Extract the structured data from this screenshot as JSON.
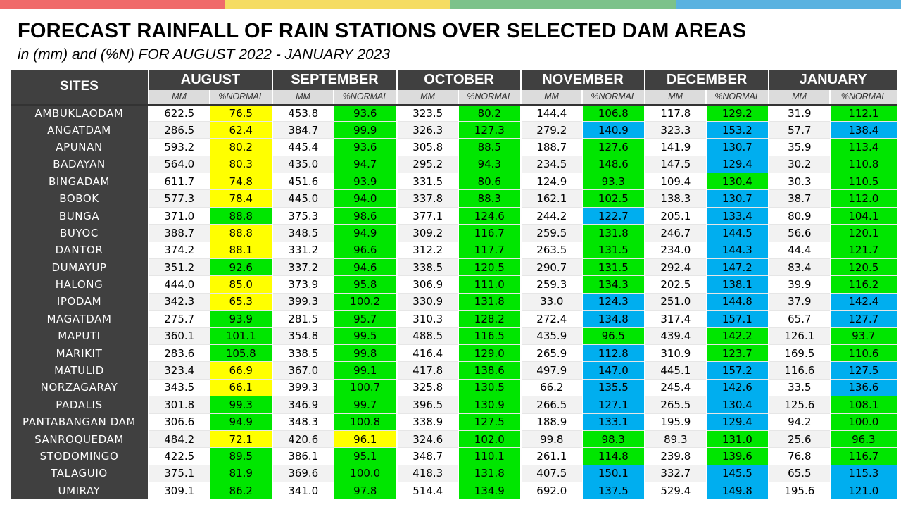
{
  "colors": {
    "topbar": [
      "#f06a6a",
      "#f5dc62",
      "#7cc28a",
      "#5ab2e0"
    ],
    "yellow": "#ffff00",
    "green": "#00e600",
    "blue": "#00aeef"
  },
  "title": "FORECAST RAINFALL OF RAIN STATIONS OVER SELECTED DAM AREAS",
  "subtitle": "in (mm) and (%N) FOR AUGUST 2022 - JANUARY 2023",
  "table": {
    "sites_header": "SITES",
    "months": [
      "AUGUST",
      "SEPTEMBER",
      "OCTOBER",
      "NOVEMBER",
      "DECEMBER",
      "JANUARY"
    ],
    "sub_headers": [
      "MM",
      "%NORMAL"
    ],
    "rows": [
      {
        "site": "AMBUKLAODAM",
        "cells": [
          [
            "622.5",
            "76.5",
            "y"
          ],
          [
            "453.8",
            "93.6",
            "g"
          ],
          [
            "323.5",
            "80.2",
            "g"
          ],
          [
            "144.4",
            "106.8",
            "g"
          ],
          [
            "117.8",
            "129.2",
            "g"
          ],
          [
            "31.9",
            "112.1",
            "g"
          ]
        ]
      },
      {
        "site": "ANGATDAM",
        "cells": [
          [
            "286.5",
            "62.4",
            "y"
          ],
          [
            "384.7",
            "99.9",
            "g"
          ],
          [
            "326.3",
            "127.3",
            "g"
          ],
          [
            "279.2",
            "140.9",
            "b"
          ],
          [
            "323.3",
            "153.2",
            "b"
          ],
          [
            "57.7",
            "138.4",
            "b"
          ]
        ]
      },
      {
        "site": "APUNAN",
        "cells": [
          [
            "593.2",
            "80.2",
            "y"
          ],
          [
            "445.4",
            "93.6",
            "g"
          ],
          [
            "305.8",
            "88.5",
            "g"
          ],
          [
            "188.7",
            "127.6",
            "g"
          ],
          [
            "141.9",
            "130.7",
            "b"
          ],
          [
            "35.9",
            "113.4",
            "g"
          ]
        ]
      },
      {
        "site": "BADAYAN",
        "cells": [
          [
            "564.0",
            "80.3",
            "y"
          ],
          [
            "435.0",
            "94.7",
            "g"
          ],
          [
            "295.2",
            "94.3",
            "g"
          ],
          [
            "234.5",
            "148.6",
            "g"
          ],
          [
            "147.5",
            "129.4",
            "b"
          ],
          [
            "30.2",
            "110.8",
            "g"
          ]
        ]
      },
      {
        "site": "BINGADAM",
        "cells": [
          [
            "611.7",
            "74.8",
            "y"
          ],
          [
            "451.6",
            "93.9",
            "g"
          ],
          [
            "331.5",
            "80.6",
            "g"
          ],
          [
            "124.9",
            "93.3",
            "g"
          ],
          [
            "109.4",
            "130.4",
            "g"
          ],
          [
            "30.3",
            "110.5",
            "g"
          ]
        ]
      },
      {
        "site": "BOBOK",
        "cells": [
          [
            "577.3",
            "78.4",
            "y"
          ],
          [
            "445.0",
            "94.0",
            "g"
          ],
          [
            "337.8",
            "88.3",
            "g"
          ],
          [
            "162.1",
            "102.5",
            "g"
          ],
          [
            "138.3",
            "130.7",
            "b"
          ],
          [
            "38.7",
            "112.0",
            "g"
          ]
        ]
      },
      {
        "site": "BUNGA",
        "cells": [
          [
            "371.0",
            "88.8",
            "g"
          ],
          [
            "375.3",
            "98.6",
            "g"
          ],
          [
            "377.1",
            "124.6",
            "g"
          ],
          [
            "244.2",
            "122.7",
            "b"
          ],
          [
            "205.1",
            "133.4",
            "b"
          ],
          [
            "80.9",
            "104.1",
            "g"
          ]
        ]
      },
      {
        "site": "BUYOC",
        "cells": [
          [
            "388.7",
            "88.8",
            "y"
          ],
          [
            "348.5",
            "94.9",
            "g"
          ],
          [
            "309.2",
            "116.7",
            "g"
          ],
          [
            "259.5",
            "131.8",
            "g"
          ],
          [
            "246.7",
            "144.5",
            "b"
          ],
          [
            "56.6",
            "120.1",
            "g"
          ]
        ]
      },
      {
        "site": "DANTOR",
        "cells": [
          [
            "374.2",
            "88.1",
            "y"
          ],
          [
            "331.2",
            "96.6",
            "g"
          ],
          [
            "312.2",
            "117.7",
            "g"
          ],
          [
            "263.5",
            "131.5",
            "g"
          ],
          [
            "234.0",
            "144.3",
            "b"
          ],
          [
            "44.4",
            "121.7",
            "g"
          ]
        ]
      },
      {
        "site": "DUMAYUP",
        "cells": [
          [
            "351.2",
            "92.6",
            "g"
          ],
          [
            "337.2",
            "94.6",
            "g"
          ],
          [
            "338.5",
            "120.5",
            "g"
          ],
          [
            "290.7",
            "131.5",
            "g"
          ],
          [
            "292.4",
            "147.2",
            "b"
          ],
          [
            "83.4",
            "120.5",
            "g"
          ]
        ]
      },
      {
        "site": "HALONG",
        "cells": [
          [
            "444.0",
            "85.0",
            "y"
          ],
          [
            "373.9",
            "95.8",
            "g"
          ],
          [
            "306.9",
            "111.0",
            "g"
          ],
          [
            "259.3",
            "134.3",
            "g"
          ],
          [
            "202.5",
            "138.1",
            "b"
          ],
          [
            "39.9",
            "116.2",
            "g"
          ]
        ]
      },
      {
        "site": "IPODAM",
        "cells": [
          [
            "342.3",
            "65.3",
            "y"
          ],
          [
            "399.3",
            "100.2",
            "g"
          ],
          [
            "330.9",
            "131.8",
            "g"
          ],
          [
            "33.0",
            "124.3",
            "b"
          ],
          [
            "251.0",
            "144.8",
            "b"
          ],
          [
            "37.9",
            "142.4",
            "b"
          ]
        ]
      },
      {
        "site": "MAGATDAM",
        "cells": [
          [
            "275.7",
            "93.9",
            "g"
          ],
          [
            "281.5",
            "95.7",
            "g"
          ],
          [
            "310.3",
            "128.2",
            "g"
          ],
          [
            "272.4",
            "134.8",
            "b"
          ],
          [
            "317.4",
            "157.1",
            "b"
          ],
          [
            "65.7",
            "127.7",
            "b"
          ]
        ]
      },
      {
        "site": "MAPUTI",
        "cells": [
          [
            "360.1",
            "101.1",
            "g"
          ],
          [
            "354.8",
            "99.5",
            "g"
          ],
          [
            "488.5",
            "116.5",
            "g"
          ],
          [
            "435.9",
            "96.5",
            "g"
          ],
          [
            "439.4",
            "142.2",
            "g"
          ],
          [
            "126.1",
            "93.7",
            "g"
          ]
        ]
      },
      {
        "site": "MARIKIT",
        "cells": [
          [
            "283.6",
            "105.8",
            "g"
          ],
          [
            "338.5",
            "99.8",
            "g"
          ],
          [
            "416.4",
            "129.0",
            "g"
          ],
          [
            "265.9",
            "112.8",
            "b"
          ],
          [
            "310.9",
            "123.7",
            "g"
          ],
          [
            "169.5",
            "110.6",
            "g"
          ]
        ]
      },
      {
        "site": "MATULID",
        "cells": [
          [
            "323.4",
            "66.9",
            "y"
          ],
          [
            "367.0",
            "99.1",
            "g"
          ],
          [
            "417.8",
            "138.6",
            "g"
          ],
          [
            "497.9",
            "147.0",
            "b"
          ],
          [
            "445.1",
            "157.2",
            "b"
          ],
          [
            "116.6",
            "127.5",
            "b"
          ]
        ]
      },
      {
        "site": "NORZAGARAY",
        "cells": [
          [
            "343.5",
            "66.1",
            "y"
          ],
          [
            "399.3",
            "100.7",
            "g"
          ],
          [
            "325.8",
            "130.5",
            "g"
          ],
          [
            "66.2",
            "135.5",
            "b"
          ],
          [
            "245.4",
            "142.6",
            "b"
          ],
          [
            "33.5",
            "136.6",
            "b"
          ]
        ]
      },
      {
        "site": "PADALIS",
        "cells": [
          [
            "301.8",
            "99.3",
            "g"
          ],
          [
            "346.9",
            "99.7",
            "g"
          ],
          [
            "396.5",
            "130.9",
            "g"
          ],
          [
            "266.5",
            "127.1",
            "b"
          ],
          [
            "265.5",
            "130.4",
            "b"
          ],
          [
            "125.6",
            "108.1",
            "g"
          ]
        ]
      },
      {
        "site": "PANTABANGAN DAM",
        "cells": [
          [
            "306.6",
            "94.9",
            "g"
          ],
          [
            "348.3",
            "100.8",
            "g"
          ],
          [
            "338.9",
            "127.5",
            "g"
          ],
          [
            "188.9",
            "133.1",
            "b"
          ],
          [
            "195.9",
            "129.4",
            "b"
          ],
          [
            "94.2",
            "100.0",
            "g"
          ]
        ]
      },
      {
        "site": "SANROQUEDAM",
        "cells": [
          [
            "484.2",
            "72.1",
            "y"
          ],
          [
            "420.6",
            "96.1",
            "y"
          ],
          [
            "324.6",
            "102.0",
            "g"
          ],
          [
            "99.8",
            "98.3",
            "g"
          ],
          [
            "89.3",
            "131.0",
            "g"
          ],
          [
            "25.6",
            "96.3",
            "g"
          ]
        ]
      },
      {
        "site": "STODOMINGO",
        "cells": [
          [
            "422.5",
            "89.5",
            "g"
          ],
          [
            "386.1",
            "95.1",
            "g"
          ],
          [
            "348.7",
            "110.1",
            "g"
          ],
          [
            "261.1",
            "114.8",
            "g"
          ],
          [
            "239.8",
            "139.6",
            "g"
          ],
          [
            "76.8",
            "116.7",
            "g"
          ]
        ]
      },
      {
        "site": "TALAGUIO",
        "cells": [
          [
            "375.1",
            "81.9",
            "g"
          ],
          [
            "369.6",
            "100.0",
            "g"
          ],
          [
            "418.3",
            "131.8",
            "g"
          ],
          [
            "407.5",
            "150.1",
            "b"
          ],
          [
            "332.7",
            "145.5",
            "b"
          ],
          [
            "65.5",
            "115.3",
            "b"
          ]
        ]
      },
      {
        "site": "UMIRAY",
        "cells": [
          [
            "309.1",
            "86.2",
            "g"
          ],
          [
            "341.0",
            "97.8",
            "g"
          ],
          [
            "514.4",
            "134.9",
            "g"
          ],
          [
            "692.0",
            "137.5",
            "b"
          ],
          [
            "529.4",
            "149.8",
            "b"
          ],
          [
            "195.6",
            "121.0",
            "b"
          ]
        ]
      }
    ]
  }
}
